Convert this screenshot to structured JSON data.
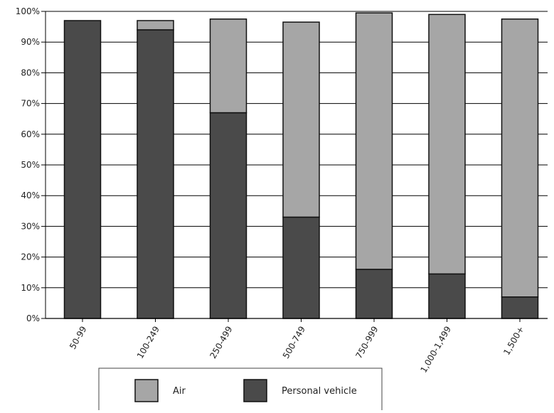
{
  "chart_data": {
    "type": "bar",
    "stacked": true,
    "categories": [
      "50-99",
      "100-249",
      "250-499",
      "500-749",
      "750-999",
      "1,000-1,499",
      "1,500+"
    ],
    "series": [
      {
        "name": "Personal vehicle",
        "color": "#4a4a4a",
        "values": [
          97,
          94,
          67,
          33,
          16,
          14.5,
          7
        ]
      },
      {
        "name": "Air",
        "color": "#a6a6a6",
        "values": [
          0,
          3,
          30.5,
          63.5,
          83.5,
          84.5,
          90.5
        ]
      }
    ],
    "ylim": [
      0,
      100
    ],
    "y_ticks": [
      "0%",
      "10%",
      "20%",
      "30%",
      "40%",
      "50%",
      "60%",
      "70%",
      "80%",
      "90%",
      "100%"
    ],
    "grid": true,
    "legend": {
      "placement": "bottom",
      "items": [
        {
          "label": "Air",
          "color": "#a6a6a6"
        },
        {
          "label": "Personal vehicle",
          "color": "#4a4a4a"
        }
      ]
    }
  }
}
